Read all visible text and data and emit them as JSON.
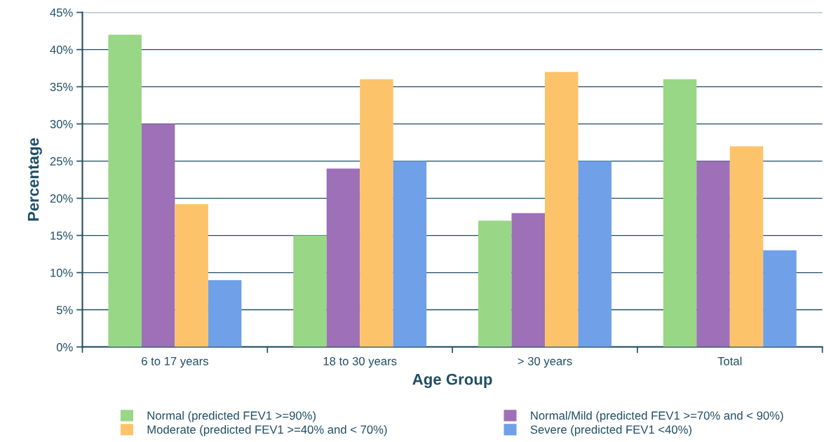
{
  "chart_data": {
    "type": "bar",
    "xlabel": "Age Group",
    "ylabel": "Percentage",
    "categories": [
      "6 to 17 years",
      "18 to 30 years",
      "> 30 years",
      "Total"
    ],
    "series": [
      {
        "name": "Normal (predicted FEV1 >=90%)",
        "color": "#98d785",
        "values": [
          42,
          15,
          17,
          36
        ]
      },
      {
        "name": "Normal/Mild (predicted FEV1 >=70% and < 90%)",
        "color": "#9e70b8",
        "values": [
          30,
          24,
          18,
          25
        ]
      },
      {
        "name": "Moderate (predicted FEV1 >=40% and < 70%)",
        "color": "#fdc36a",
        "values": [
          19.2,
          36,
          37,
          27
        ]
      },
      {
        "name": "Severe (predicted FEV1 <40%)",
        "color": "#6fa0e8",
        "values": [
          9,
          25,
          25,
          13
        ]
      }
    ],
    "ylim": [
      0,
      45
    ],
    "yticks": [
      {
        "value": 0,
        "label": "0%"
      },
      {
        "value": 5,
        "label": "5%"
      },
      {
        "value": 10,
        "label": "10%"
      },
      {
        "value": 15,
        "label": "15%"
      },
      {
        "value": 20,
        "label": "20%"
      },
      {
        "value": 25,
        "label": "25%"
      },
      {
        "value": 30,
        "label": "30%"
      },
      {
        "value": 35,
        "label": "35%"
      },
      {
        "value": 40,
        "label": "40%"
      },
      {
        "value": 45,
        "label": "45%"
      }
    ],
    "grid": "y",
    "legend": "bottom"
  }
}
